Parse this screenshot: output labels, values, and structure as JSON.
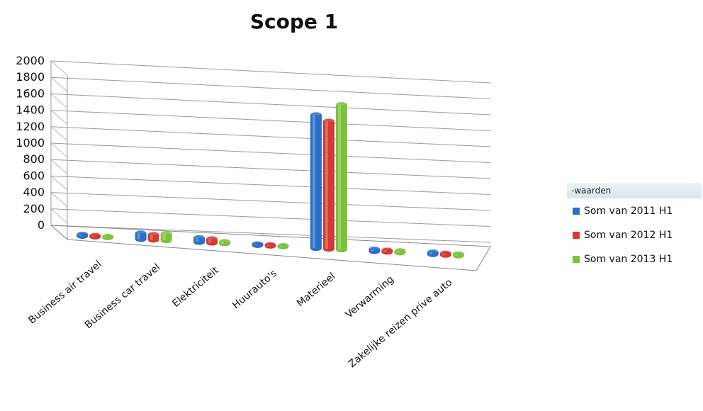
{
  "chart_data": {
    "type": "bar",
    "title": "Scope 1",
    "categories": [
      "Business air travel",
      "Business car travel",
      "Elektriciteit",
      "Huurauto's",
      "Materieel",
      "Verwarming",
      "Zakelijke reizen prive auto"
    ],
    "series": [
      {
        "name": "Som van 2011 H1",
        "color": "#2a6fc9",
        "values": [
          18,
          70,
          50,
          12,
          1620,
          22,
          24
        ]
      },
      {
        "name": "Som van 2012 H1",
        "color": "#d33a32",
        "values": [
          12,
          60,
          45,
          10,
          1550,
          18,
          18
        ]
      },
      {
        "name": "Som van 2013 H1",
        "color": "#7cc23d",
        "values": [
          8,
          80,
          20,
          8,
          1760,
          20,
          18
        ]
      }
    ],
    "yticks": [
      0,
      200,
      400,
      600,
      800,
      1000,
      1200,
      1400,
      1600,
      1800,
      2000
    ],
    "ylim": [
      0,
      2000
    ],
    "grid": true,
    "legend_title": "-waarden",
    "legend_position": "right"
  }
}
